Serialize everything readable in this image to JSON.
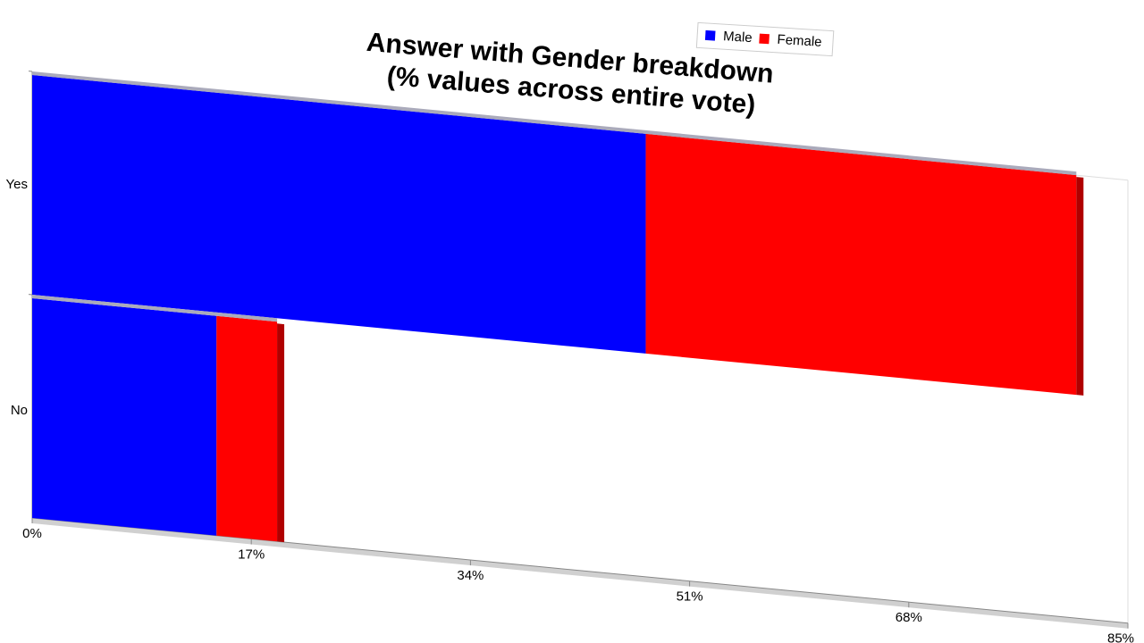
{
  "chart_data": {
    "type": "bar",
    "orientation": "horizontal",
    "stacked": true,
    "title": [
      "Answer with Gender breakdown",
      "(% values across entire vote)"
    ],
    "categories": [
      "Yes",
      "No"
    ],
    "series": [
      {
        "name": "Male",
        "color": "#0000ff",
        "values": [
          47.6,
          14.3
        ]
      },
      {
        "name": "Female",
        "color": "#ff0000",
        "values": [
          33.4,
          4.7
        ]
      }
    ],
    "xlim": [
      0,
      85
    ],
    "xticks": [
      {
        "value": 0,
        "label": "0%"
      },
      {
        "value": 17,
        "label": "17%"
      },
      {
        "value": 34,
        "label": "34%"
      },
      {
        "value": 51,
        "label": "51%"
      },
      {
        "value": 68,
        "label": "68%"
      },
      {
        "value": 85,
        "label": "85%"
      }
    ],
    "legend": "top-right"
  }
}
